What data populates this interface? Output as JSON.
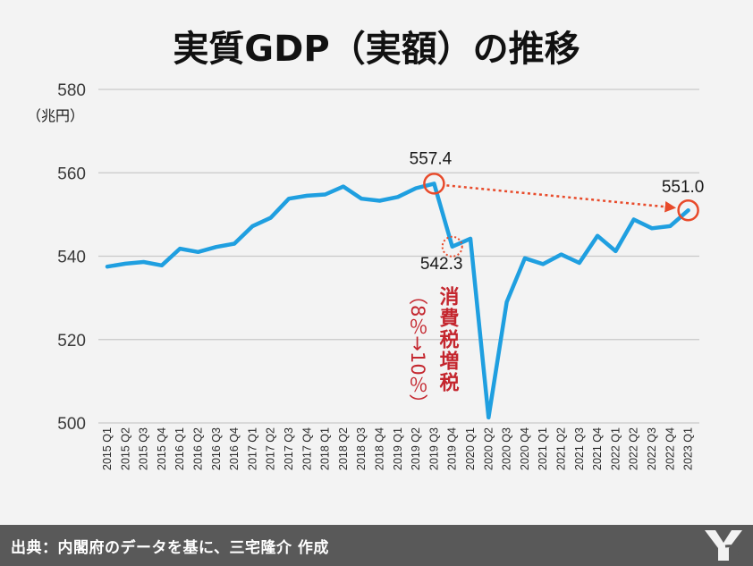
{
  "title": "実質GDP（実額）の推移",
  "unit_label": "（兆円）",
  "source": "出典：内閣府のデータを基に、三宅隆介 作成",
  "colors": {
    "line": "#1f9fe0",
    "accent": "#e84a2a",
    "annotation": "#c4262e",
    "footer": "#595959"
  },
  "chart_data": {
    "type": "line",
    "title": "実質GDP（実額）の推移",
    "ylabel": "（兆円）",
    "xlabel": "",
    "ylim": [
      500,
      580
    ],
    "yticks": [
      500,
      520,
      540,
      560,
      580
    ],
    "grid": "horizontal",
    "categories": [
      "2015 Q1",
      "2015 Q2",
      "2015 Q3",
      "2015 Q4",
      "2016 Q1",
      "2016 Q2",
      "2016 Q3",
      "2016 Q4",
      "2017 Q1",
      "2017 Q2",
      "2017 Q3",
      "2017 Q4",
      "2018 Q1",
      "2018 Q2",
      "2018 Q3",
      "2018 Q4",
      "2019 Q1",
      "2019 Q2",
      "2019 Q3",
      "2019 Q4",
      "2020 Q1",
      "2020 Q2",
      "2020 Q3",
      "2020 Q4",
      "2021 Q1",
      "2021 Q2",
      "2021 Q3",
      "2021 Q4",
      "2022 Q1",
      "2022 Q2",
      "2022 Q3",
      "2022 Q4",
      "2023 Q1"
    ],
    "series": [
      {
        "values": [
          537.5,
          538.2,
          538.6,
          537.8,
          541.8,
          541.0,
          542.2,
          543.0,
          547.2,
          549.2,
          553.8,
          554.5,
          554.8,
          556.7,
          553.8,
          553.3,
          554.2,
          556.3,
          557.4,
          542.3,
          544.2,
          501.3,
          529.0,
          539.5,
          538.1,
          540.4,
          538.4,
          544.9,
          541.2,
          548.8,
          546.7,
          547.2,
          551.0
        ]
      }
    ],
    "annotations": {
      "peak_label": "557.4",
      "drop_label": "542.3",
      "latest_label": "551.0",
      "tax_label": "消費税増税",
      "tax_sub": "（8％→10％）"
    }
  }
}
